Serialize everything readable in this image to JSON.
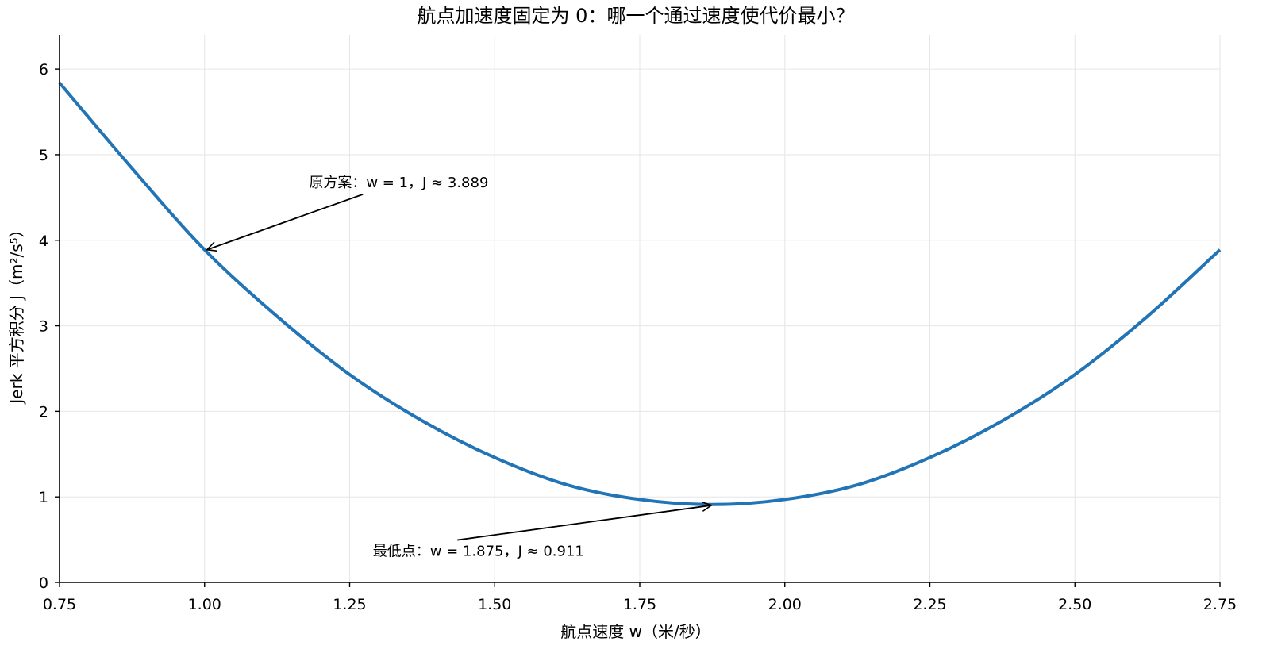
{
  "chart_data": {
    "type": "line",
    "title": "航点加速度固定为 0：哪一个通过速度使代价最小？",
    "xlabel": "航点速度 w（米/秒）",
    "ylabel": "Jerk 平方积分 J（m²/s⁵）",
    "xlim": [
      0.75,
      2.75
    ],
    "ylim": [
      0,
      6.4
    ],
    "xticks": [
      "0.75",
      "1.00",
      "1.25",
      "1.50",
      "1.75",
      "2.00",
      "2.25",
      "2.50",
      "2.75"
    ],
    "yticks": [
      "0",
      "1",
      "2",
      "3",
      "4",
      "5",
      "6"
    ],
    "grid": true,
    "series": [
      {
        "color": "#2174b5",
        "x": [
          0.75,
          0.875,
          1.0,
          1.125,
          1.25,
          1.375,
          1.5,
          1.625,
          1.75,
          1.875,
          2.0,
          2.125,
          2.25,
          2.375,
          2.5,
          2.625,
          2.75
        ],
        "y": [
          5.84,
          4.84,
          3.889,
          3.11,
          2.43,
          1.89,
          1.46,
          1.14,
          0.97,
          0.911,
          0.97,
          1.14,
          1.46,
          1.89,
          2.43,
          3.11,
          3.889
        ]
      }
    ],
    "annotations": [
      {
        "text": "原方案：w = 1，J ≈ 3.889",
        "point": [
          1.0,
          3.889
        ],
        "text_pos": [
          1.18,
          4.62
        ]
      },
      {
        "text": "最低点：w = 1.875，J ≈ 0.911",
        "point": [
          1.875,
          0.911
        ],
        "text_pos": [
          1.29,
          0.31
        ]
      }
    ]
  }
}
